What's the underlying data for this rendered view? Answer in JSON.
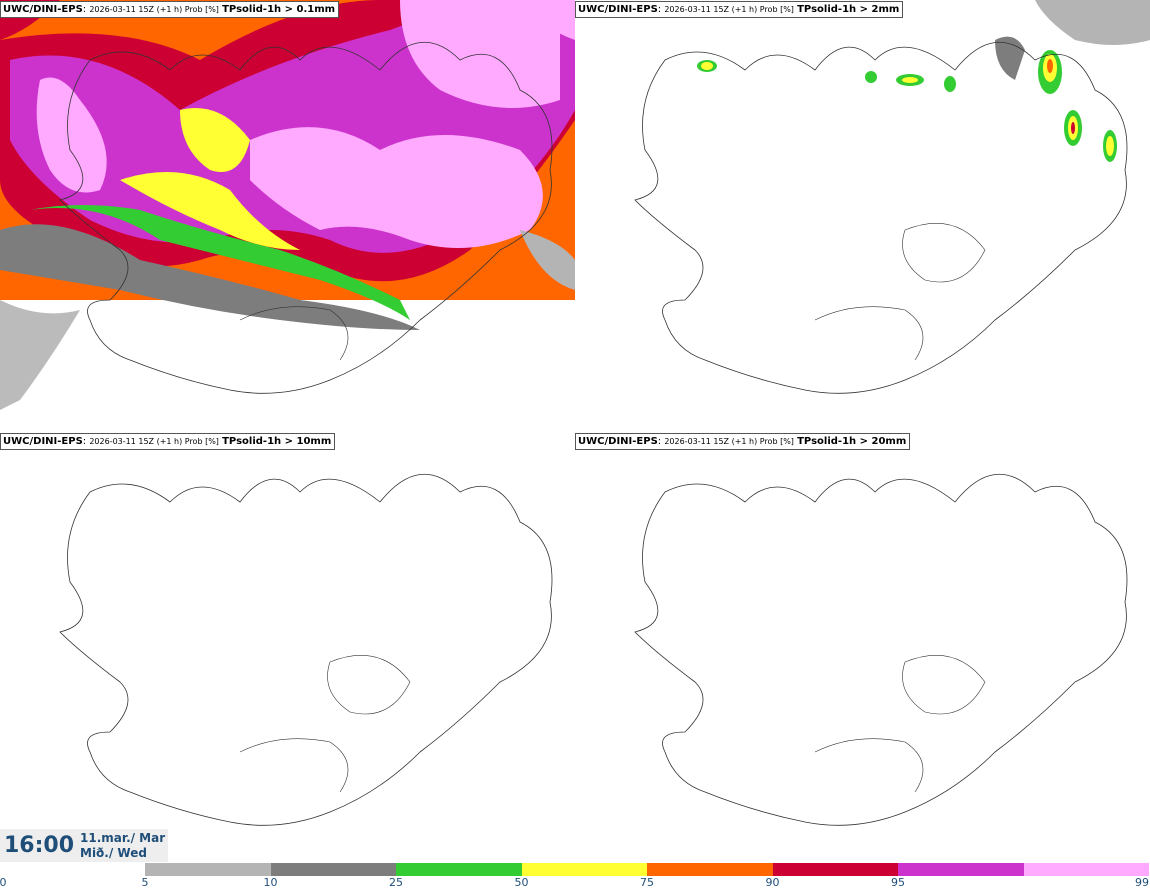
{
  "panels": [
    {
      "model": "UWC/DINI-EPS",
      "meta": "2026-03-11 15Z (+1 h) Prob [%]",
      "param": "TPsolid-1h > 0.1mm"
    },
    {
      "model": "UWC/DINI-EPS",
      "meta": "2026-03-11 15Z (+1 h) Prob [%]",
      "param": "TPsolid-1h > 2mm"
    },
    {
      "model": "UWC/DINI-EPS",
      "meta": "2026-03-11 15Z (+1 h) Prob [%]",
      "param": "TPsolid-1h > 10mm"
    },
    {
      "model": "UWC/DINI-EPS",
      "meta": "2026-03-11 15Z (+1 h) Prob [%]",
      "param": "TPsolid-1h > 20mm"
    }
  ],
  "valid_time": {
    "time": "16:00",
    "date_line1": "11.mar./ Mar",
    "date_line2": "Mið./ Wed"
  },
  "colorbar": {
    "ticks": [
      "0",
      "5",
      "10",
      "25",
      "50",
      "75",
      "90",
      "95",
      "99"
    ],
    "colors": [
      "#b4b4b4",
      "#7d7d7d",
      "#33cc33",
      "#ffff33",
      "#ff6600",
      "#cc0033",
      "#cc33cc",
      "#ffaaff"
    ]
  }
}
